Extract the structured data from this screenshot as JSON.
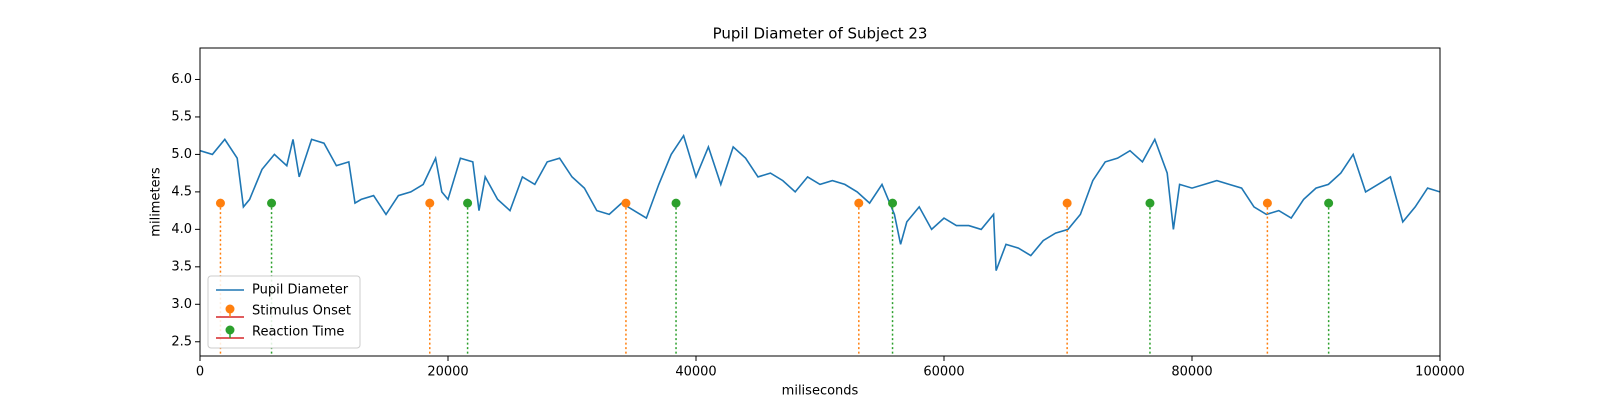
{
  "chart_data": {
    "type": "line",
    "title": "Pupil Diameter of Subject 23",
    "xlabel": "miliseconds",
    "ylabel": "milimeters",
    "xlim": [
      0,
      100000
    ],
    "xticks": [
      0,
      20000,
      40000,
      60000,
      80000,
      100000
    ],
    "ylim": [
      2.31,
      6.42
    ],
    "yticks": [
      2.5,
      {
        "value": 3.0,
        "label": "3.0"
      },
      3.5,
      {
        "value": 4.0,
        "label": "4.0"
      },
      4.5,
      {
        "value": 5.0,
        "label": "5.0"
      },
      5.5,
      {
        "value": 6.0,
        "label": "6.0"
      }
    ],
    "legend": "lower left",
    "series": [
      {
        "name": "Pupil Diameter",
        "kind": "line",
        "color": "#1f77b4",
        "x": [
          0,
          1000,
          2000,
          3000,
          3500,
          4000,
          5000,
          6000,
          7000,
          7500,
          8000,
          9000,
          10000,
          11000,
          12000,
          12500,
          13000,
          14000,
          15000,
          16000,
          17000,
          18000,
          19000,
          19500,
          20000,
          21000,
          22000,
          22500,
          23000,
          24000,
          25000,
          26000,
          27000,
          28000,
          29000,
          30000,
          31000,
          32000,
          33000,
          34000,
          35000,
          36000,
          37000,
          38000,
          39000,
          40000,
          41000,
          42000,
          43000,
          44000,
          45000,
          46000,
          47000,
          48000,
          49000,
          50000,
          51000,
          52000,
          53000,
          54000,
          55000,
          56000,
          56500,
          57000,
          58000,
          59000,
          60000,
          61000,
          62000,
          63000,
          64000,
          64200,
          65000,
          66000,
          67000,
          68000,
          69000,
          70000,
          71000,
          72000,
          73000,
          74000,
          75000,
          76000,
          77000,
          78000,
          78500,
          79000,
          80000,
          81000,
          82000,
          83000,
          84000,
          85000,
          86000,
          87000,
          88000,
          89000,
          90000,
          91000,
          92000,
          93000,
          94000,
          95000,
          96000,
          97000,
          98000,
          99000,
          100000
        ],
        "values": [
          5.05,
          5.0,
          5.2,
          4.95,
          4.3,
          4.4,
          4.8,
          5.0,
          4.85,
          5.2,
          4.7,
          5.2,
          5.15,
          4.85,
          4.9,
          4.35,
          4.4,
          4.45,
          4.2,
          4.45,
          4.5,
          4.6,
          4.95,
          4.5,
          4.4,
          4.95,
          4.9,
          4.25,
          4.7,
          4.4,
          4.25,
          4.7,
          4.6,
          4.9,
          4.95,
          4.7,
          4.55,
          4.25,
          4.2,
          4.35,
          4.25,
          4.15,
          4.6,
          5.0,
          5.25,
          4.7,
          5.1,
          4.6,
          5.1,
          4.95,
          4.7,
          4.75,
          4.65,
          4.5,
          4.7,
          4.6,
          4.65,
          4.6,
          4.5,
          4.35,
          4.6,
          4.2,
          3.8,
          4.1,
          4.3,
          4.0,
          4.15,
          4.05,
          4.05,
          4.0,
          4.2,
          3.45,
          3.8,
          3.75,
          3.65,
          3.85,
          3.95,
          4.0,
          4.2,
          4.65,
          4.9,
          4.95,
          5.05,
          4.9,
          5.2,
          4.75,
          4.0,
          4.6,
          4.55,
          4.6,
          4.65,
          4.6,
          4.55,
          4.3,
          4.2,
          4.25,
          4.15,
          4.4,
          4.55,
          4.6,
          4.75,
          5.0,
          4.5,
          4.6,
          4.7,
          4.1,
          4.3,
          4.55,
          4.5
        ]
      },
      {
        "name": "Stimulus Onset",
        "kind": "stem",
        "color": "#ff7f0e",
        "x": [
          1650,
          18530,
          34350,
          53130,
          69930,
          86080
        ],
        "values": [
          4.35,
          4.35,
          4.35,
          4.35,
          4.35,
          4.35
        ]
      },
      {
        "name": "Reaction Time",
        "kind": "stem",
        "color": "#2ca02c",
        "x": [
          5770,
          21580,
          38390,
          55850,
          76610,
          91020
        ],
        "values": [
          4.35,
          4.35,
          4.35,
          4.35,
          4.35,
          4.35
        ]
      }
    ]
  }
}
